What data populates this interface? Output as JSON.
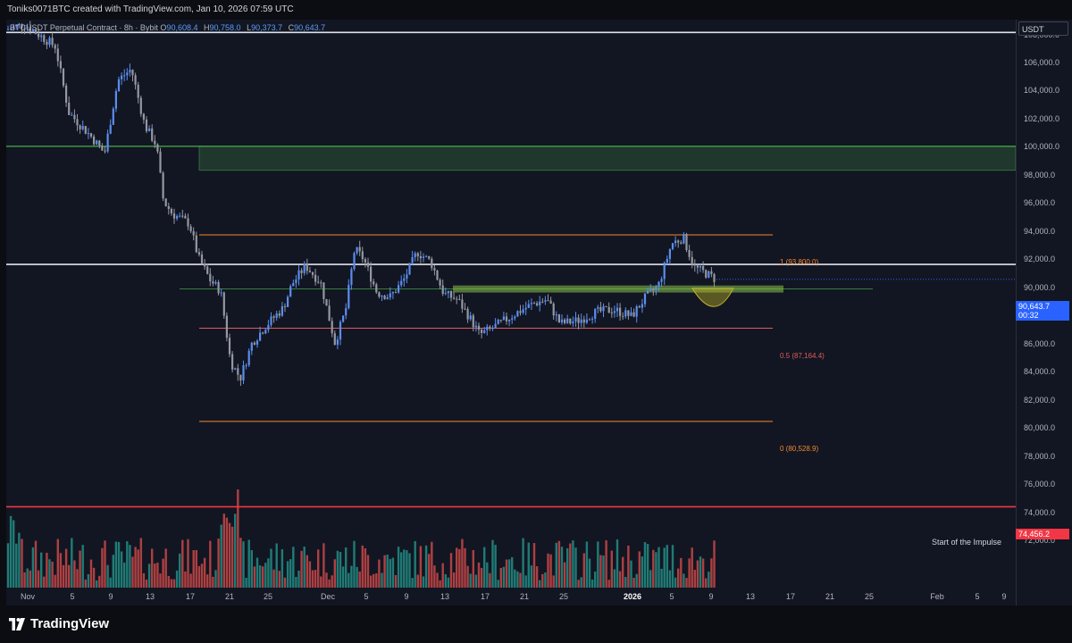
{
  "header": {
    "credit": "Toniks0071BTC created with TradingView.com, Jan 10, 2026 07:59 UTC"
  },
  "legend": {
    "symbol": "BTCUSDT Perpetual Contract · 8h · Bybit",
    "o_label": "O",
    "o": "90,608.4",
    "h_label": "H",
    "h": "90,758.0",
    "l_label": "L",
    "l": "90,373.7",
    "c_label": "C",
    "c": "90,643.7"
  },
  "currency": "USDT",
  "price_axis": {
    "labels": [
      "108,000.0",
      "106,000.0",
      "104,000.0",
      "102,000.0",
      "100,000.0",
      "98,000.0",
      "96,000.0",
      "94,000.0",
      "92,000.0",
      "90,000.0",
      "88,000.0",
      "86,000.0",
      "84,000.0",
      "82,000.0",
      "80,000.0",
      "78,000.0",
      "76,000.0",
      "74,000.0",
      "72,000.0"
    ],
    "current_price": "90,643.7",
    "countdown": "00:32",
    "impulse_price": "74,456.2"
  },
  "time_axis": {
    "labels": [
      "Nov",
      "5",
      "9",
      "13",
      "17",
      "21",
      "25",
      "Dec",
      "5",
      "9",
      "13",
      "17",
      "21",
      "25",
      "2026",
      "5",
      "9",
      "13",
      "17",
      "21",
      "25",
      "Feb",
      "5",
      "9"
    ]
  },
  "fib": {
    "level_1": "1 (93,800.0)",
    "level_05": "0.5 (87,164.4)",
    "level_0": "0 (80,528.9)"
  },
  "annotations": {
    "impulse": "Start of the Impulse"
  },
  "brand": {
    "name": "TradingView"
  },
  "colors": {
    "up": "#5b8def",
    "down": "#9598a1",
    "vol_up": "#26a69a",
    "vol_down": "#ef5350",
    "fib": "#f5872f",
    "fib_mid": "#e05c5c",
    "zone": "#4caf50",
    "impulse": "#f23645"
  },
  "chart_data": {
    "type": "candlestick",
    "timeframe": "8h",
    "ylim": [
      70800,
      110000
    ],
    "fib_levels": [
      93800.0,
      87164.4,
      80528.9
    ],
    "horizontal_lines": [
      108200,
      91700,
      100100,
      74456.2
    ],
    "supply_zone": [
      98400,
      100100
    ],
    "date_range": [
      "Oct 29, 2025",
      "Jan 10, 2026"
    ]
  }
}
